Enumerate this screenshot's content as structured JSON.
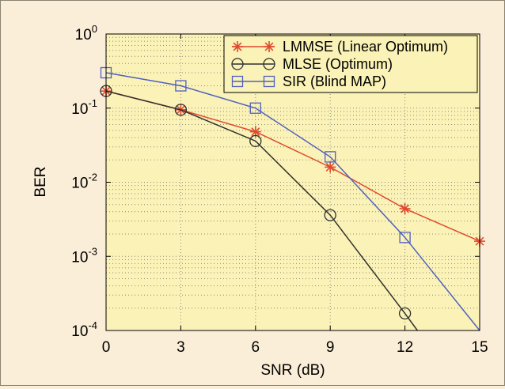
{
  "chart_data": {
    "type": "line",
    "title": "",
    "xlabel": "SNR (dB)",
    "ylabel": "BER",
    "xlim": [
      0,
      15
    ],
    "ylim": [
      0.0001,
      1
    ],
    "yscale": "log",
    "grid": true,
    "legend_position": "top-right",
    "x_ticks": [
      "0",
      "3",
      "6",
      "9",
      "12",
      "15"
    ],
    "y_ticks": [
      {
        "base": "10",
        "exp": "0"
      },
      {
        "base": "10",
        "exp": "-1"
      },
      {
        "base": "10",
        "exp": "-2"
      },
      {
        "base": "10",
        "exp": "-3"
      },
      {
        "base": "10",
        "exp": "-4"
      }
    ],
    "colors": {
      "plot_background": "#faf2b6",
      "frame_background": "#fbeed8",
      "grid": "#8a8a80"
    },
    "series": [
      {
        "name": "LMMSE (Linear Optimum)",
        "color": "#e04a30",
        "marker": "asterisk",
        "points": [
          [
            0,
            0.17
          ],
          [
            3,
            0.095
          ],
          [
            6,
            0.048
          ],
          [
            9,
            0.016
          ],
          [
            12,
            0.0044
          ],
          [
            15,
            0.0016
          ]
        ]
      },
      {
        "name": "MLSE (Optimum)",
        "color": "#303030",
        "marker": "circle",
        "points": [
          [
            0,
            0.17
          ],
          [
            3,
            0.095
          ],
          [
            6,
            0.036
          ],
          [
            9,
            0.0036
          ],
          [
            12,
            0.00017
          ],
          [
            12.5,
            0.0001
          ]
        ]
      },
      {
        "name": "SIR (Blind MAP)",
        "color": "#5060c0",
        "marker": "square",
        "points": [
          [
            0,
            0.3
          ],
          [
            3,
            0.2
          ],
          [
            6,
            0.1
          ],
          [
            9,
            0.022
          ],
          [
            12,
            0.0018
          ],
          [
            15,
            0.0001
          ]
        ]
      }
    ]
  }
}
